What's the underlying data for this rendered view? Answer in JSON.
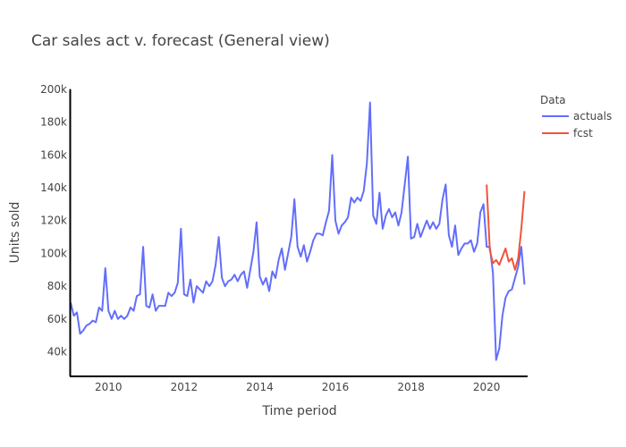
{
  "chart_data": {
    "type": "line",
    "title": "Car sales act v. forecast (General view)",
    "xlabel": "Time period",
    "ylabel": "Units sold",
    "x_unit": "monthly",
    "xlim": [
      "2009-01",
      "2021-02"
    ],
    "ylim": [
      25000,
      200000
    ],
    "x_ticks": [
      {
        "date": "2010-01",
        "label": "2010"
      },
      {
        "date": "2012-01",
        "label": "2012"
      },
      {
        "date": "2014-01",
        "label": "2014"
      },
      {
        "date": "2016-01",
        "label": "2016"
      },
      {
        "date": "2018-01",
        "label": "2018"
      },
      {
        "date": "2020-01",
        "label": "2020"
      }
    ],
    "y_ticks": [
      {
        "value": 40000,
        "label": "40k"
      },
      {
        "value": 60000,
        "label": "60k"
      },
      {
        "value": 80000,
        "label": "80k"
      },
      {
        "value": 100000,
        "label": "100k"
      },
      {
        "value": 120000,
        "label": "120k"
      },
      {
        "value": 140000,
        "label": "140k"
      },
      {
        "value": 160000,
        "label": "160k"
      },
      {
        "value": 180000,
        "label": "180k"
      },
      {
        "value": 200000,
        "label": "200k"
      }
    ],
    "grid": false,
    "legend": {
      "title": "Data",
      "position": "top-right"
    },
    "series": [
      {
        "name": "actuals",
        "color": "#636efa",
        "start": "2009-01",
        "values": [
          70000,
          62000,
          64000,
          51000,
          53000,
          56000,
          57000,
          59000,
          58000,
          67000,
          65000,
          91000,
          65000,
          60000,
          65000,
          60000,
          62000,
          60000,
          62000,
          67000,
          65000,
          74000,
          75000,
          104000,
          68000,
          67000,
          75000,
          65000,
          68000,
          68000,
          68000,
          76000,
          74000,
          76000,
          82000,
          115000,
          75000,
          74000,
          84000,
          70000,
          80000,
          78000,
          76000,
          83000,
          80000,
          83000,
          93000,
          110000,
          85000,
          80000,
          83000,
          84000,
          87000,
          83000,
          87000,
          89000,
          79000,
          90000,
          101000,
          119000,
          86000,
          81000,
          85000,
          77000,
          89000,
          85000,
          96000,
          103000,
          90000,
          100000,
          110000,
          133000,
          104000,
          98000,
          105000,
          95000,
          101000,
          108000,
          112000,
          112000,
          111000,
          119000,
          126000,
          160000,
          120000,
          112000,
          117000,
          119000,
          122000,
          134000,
          131000,
          134000,
          132000,
          138000,
          155000,
          192000,
          123000,
          118000,
          137000,
          115000,
          123000,
          127000,
          122000,
          125000,
          117000,
          125000,
          142000,
          159000,
          109000,
          110000,
          118000,
          110000,
          115000,
          120000,
          115000,
          119000,
          115000,
          118000,
          133000,
          142000,
          111000,
          104000,
          117000,
          99000,
          103000,
          106000,
          106000,
          108000,
          101000,
          106000,
          125000,
          130000,
          104000,
          104000,
          88000,
          35000,
          42000,
          62000,
          73000,
          77000,
          78000,
          85000,
          92000,
          104000,
          81000
        ]
      },
      {
        "name": "fcst",
        "color": "#ef553b",
        "start": "2020-01",
        "values": [
          142000,
          102000,
          94000,
          96000,
          93000,
          98000,
          103000,
          95000,
          97000,
          90000,
          97000,
          115000,
          138000
        ]
      }
    ]
  }
}
